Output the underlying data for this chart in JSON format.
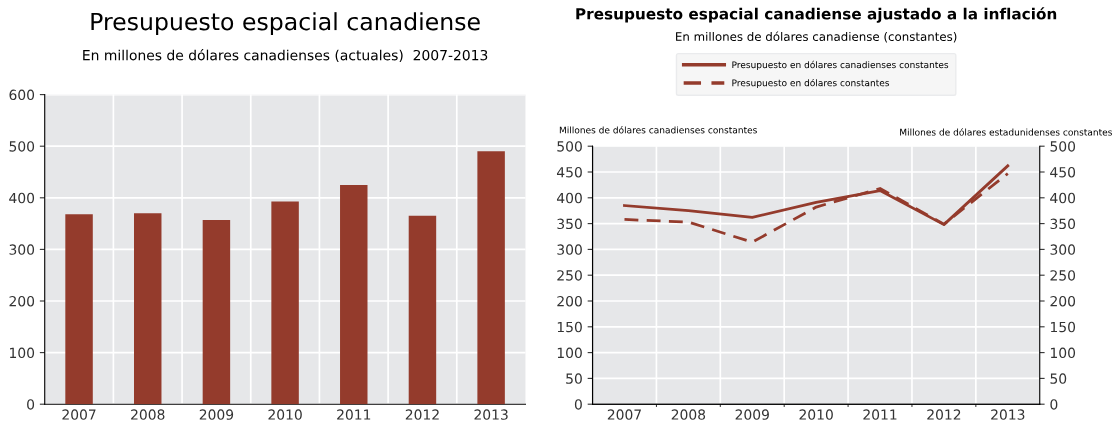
{
  "chart_data": [
    {
      "type": "bar",
      "title": "Presupuesto espacial canadiense",
      "subtitle": "En millones de dólares canadienses (actuales)  2007-2013",
      "categories": [
        "2007",
        "2008",
        "2009",
        "2010",
        "2011",
        "2012",
        "2013"
      ],
      "values": [
        368,
        370,
        357,
        393,
        425,
        365,
        490
      ],
      "color": "#943b2c",
      "ylim": [
        0,
        600
      ],
      "yticks": [
        0,
        100,
        200,
        300,
        400,
        500,
        600
      ],
      "grid": true
    },
    {
      "type": "line",
      "title": "Presupuesto espacial canadiense ajustado a la inflación",
      "subtitle": "En millones de dólares canadiense (constantes)",
      "ylabel": "Millones de dólares canadienses constantes",
      "y2label": "Millones de dólares estadunidenses constantes",
      "categories": [
        "2007",
        "2008",
        "2009",
        "2010",
        "2011",
        "2012",
        "2013"
      ],
      "series": [
        {
          "name": "Presupuesto en dólares canadienses constantes",
          "color": "#943b2c",
          "line_style": "solid",
          "values": [
            385,
            375,
            362,
            391,
            414,
            348,
            462
          ]
        },
        {
          "name": "Presupuesto en dólares constantes",
          "color": "#943b2c",
          "line_style": "dashed",
          "axis": "y2",
          "values": [
            358,
            353,
            314,
            382,
            418,
            349,
            447
          ]
        }
      ],
      "ylim": [
        0,
        500
      ],
      "yticks": [
        0,
        50,
        100,
        150,
        200,
        250,
        300,
        350,
        400,
        450,
        500
      ],
      "y2lim": [
        0,
        500
      ],
      "y2ticks": [
        0,
        50,
        100,
        150,
        200,
        250,
        300,
        350,
        400,
        450,
        500
      ],
      "grid": true,
      "legend": "top"
    }
  ]
}
